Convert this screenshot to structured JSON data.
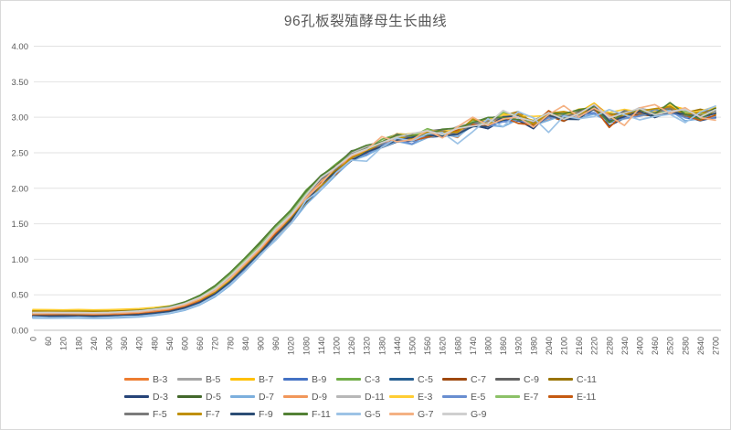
{
  "title": "96孔板裂殖酵母生长曲线",
  "colors": {
    "background": "#ffffff",
    "chart_border": "#d9d9d9",
    "gridline": "#e2e2e2",
    "axis_line": "#bfbfbf",
    "text": "#595959"
  },
  "chart_data": {
    "type": "line",
    "title": "96孔板裂殖酵母生长曲线",
    "xlabel": "",
    "ylabel": "",
    "ylim": [
      0,
      4
    ],
    "y_tick_step": 0.5,
    "y_tick_labels": [
      "0.00",
      "0.50",
      "1.00",
      "1.50",
      "2.00",
      "2.50",
      "3.00",
      "3.50",
      "4.00"
    ],
    "grid": true,
    "legend_position": "bottom",
    "x": [
      0,
      60,
      120,
      180,
      240,
      300,
      360,
      420,
      480,
      540,
      600,
      660,
      720,
      780,
      840,
      900,
      960,
      1020,
      1080,
      1140,
      1200,
      1260,
      1320,
      1380,
      1440,
      1500,
      1560,
      1620,
      1680,
      1740,
      1800,
      1860,
      1920,
      1980,
      2040,
      2100,
      2160,
      2220,
      2280,
      2340,
      2400,
      2460,
      2520,
      2580,
      2640,
      2700
    ],
    "mean_values": [
      0.23,
      0.23,
      0.23,
      0.23,
      0.23,
      0.23,
      0.24,
      0.25,
      0.27,
      0.3,
      0.35,
      0.43,
      0.55,
      0.72,
      0.93,
      1.15,
      1.38,
      1.6,
      1.85,
      2.08,
      2.28,
      2.45,
      2.56,
      2.63,
      2.68,
      2.72,
      2.76,
      2.8,
      2.83,
      2.86,
      2.92,
      2.98,
      3.0,
      2.98,
      3.0,
      3.01,
      3.03,
      3.1,
      3.03,
      3.04,
      3.06,
      3.08,
      3.04,
      3.08,
      3.05,
      3.05
    ],
    "series": [
      {
        "name": "B-3",
        "color": "#ED7D31",
        "offset": -0.01,
        "shift": 5,
        "amp": 0.07,
        "seed": 1
      },
      {
        "name": "B-5",
        "color": "#A5A5A5",
        "offset": 0.01,
        "shift": -10,
        "amp": 0.05,
        "seed": 2
      },
      {
        "name": "B-7",
        "color": "#FFC000",
        "offset": 0.05,
        "shift": 25,
        "amp": 0.06,
        "seed": 3
      },
      {
        "name": "B-9",
        "color": "#4472C4",
        "offset": -0.03,
        "shift": 5,
        "amp": 0.06,
        "seed": 4
      },
      {
        "name": "C-3",
        "color": "#70AD47",
        "offset": 0.02,
        "shift": -20,
        "amp": 0.06,
        "seed": 5
      },
      {
        "name": "C-5",
        "color": "#255E91",
        "offset": -0.04,
        "shift": 0,
        "amp": 0.05,
        "seed": 6
      },
      {
        "name": "C-7",
        "color": "#9E480E",
        "offset": -0.02,
        "shift": 10,
        "amp": 0.05,
        "seed": 7
      },
      {
        "name": "C-9",
        "color": "#636363",
        "offset": 0.02,
        "shift": -15,
        "amp": 0.05,
        "seed": 8
      },
      {
        "name": "C-11",
        "color": "#997300",
        "offset": 0.04,
        "shift": 15,
        "amp": 0.05,
        "seed": 9
      },
      {
        "name": "D-3",
        "color": "#264478",
        "offset": -0.05,
        "shift": 5,
        "amp": 0.06,
        "seed": 10
      },
      {
        "name": "D-5",
        "color": "#43682B",
        "offset": 0.01,
        "shift": -20,
        "amp": 0.06,
        "seed": 11
      },
      {
        "name": "D-7",
        "color": "#7CAFDD",
        "offset": -0.06,
        "shift": 10,
        "amp": 0.07,
        "seed": 12
      },
      {
        "name": "D-9",
        "color": "#F1975A",
        "offset": 0.0,
        "shift": 0,
        "amp": 0.08,
        "seed": 13
      },
      {
        "name": "D-11",
        "color": "#B7B7B7",
        "offset": 0.02,
        "shift": -10,
        "amp": 0.06,
        "seed": 14
      },
      {
        "name": "E-3",
        "color": "#FFCD33",
        "offset": 0.06,
        "shift": 30,
        "amp": 0.06,
        "seed": 15
      },
      {
        "name": "E-5",
        "color": "#698ED0",
        "offset": -0.04,
        "shift": 5,
        "amp": 0.06,
        "seed": 16
      },
      {
        "name": "E-7",
        "color": "#8CC168",
        "offset": 0.01,
        "shift": -15,
        "amp": 0.06,
        "seed": 17
      },
      {
        "name": "E-11",
        "color": "#C55A11",
        "offset": -0.02,
        "shift": 5,
        "amp": 0.09,
        "seed": 18
      },
      {
        "name": "F-5",
        "color": "#7B7B7B",
        "offset": 0.01,
        "shift": -5,
        "amp": 0.05,
        "seed": 19
      },
      {
        "name": "F-7",
        "color": "#BF8F00",
        "offset": 0.03,
        "shift": 20,
        "amp": 0.05,
        "seed": 20
      },
      {
        "name": "F-9",
        "color": "#2C4D75",
        "offset": -0.03,
        "shift": 5,
        "amp": 0.06,
        "seed": 21
      },
      {
        "name": "F-11",
        "color": "#538135",
        "offset": 0.02,
        "shift": -20,
        "amp": 0.07,
        "seed": 22
      },
      {
        "name": "G-5",
        "color": "#9DC3E6",
        "offset": -0.05,
        "shift": 10,
        "amp": 0.2,
        "seed": 23
      },
      {
        "name": "G-7",
        "color": "#F4B183",
        "offset": 0.01,
        "shift": 0,
        "amp": 0.15,
        "seed": 24
      },
      {
        "name": "G-9",
        "color": "#CFCFCF",
        "offset": 0.02,
        "shift": -5,
        "amp": 0.08,
        "seed": 25
      }
    ]
  }
}
